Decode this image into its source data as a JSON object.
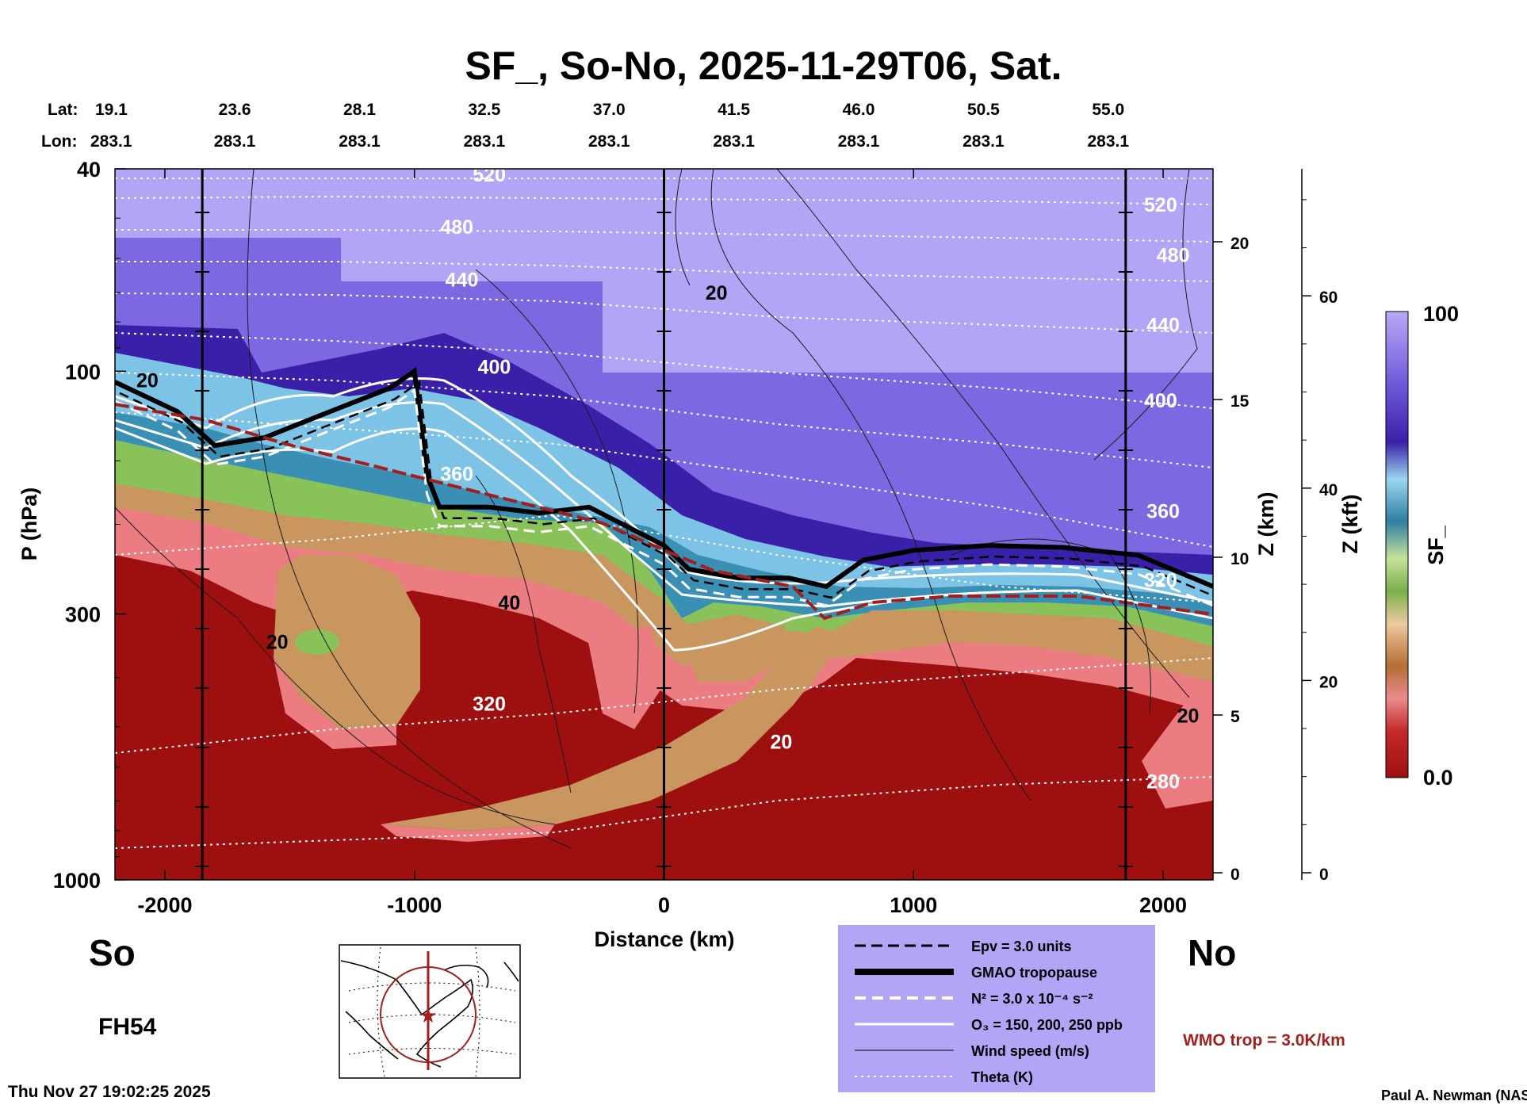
{
  "chart_data": {
    "type": "heatmap",
    "title": "SF_, So-No, 2025-11-29T06, Sat.",
    "xlabel": "Distance (km)",
    "ylabel": "P (hPa)",
    "zlabel_km": "Z (km)",
    "zlabel_kft": "Z (kft)",
    "colorbar_label": "SF_",
    "colorbar_range": [
      0.0,
      100
    ],
    "colorbar_ticks": [
      "100",
      "0.0"
    ],
    "x_range": [
      -2200,
      2200
    ],
    "x_ticks": [
      -2000,
      -1000,
      0,
      1000,
      2000
    ],
    "p_range": [
      40,
      1000
    ],
    "p_scale": "log",
    "p_ticks": [
      40,
      100,
      300,
      1000
    ],
    "z_km_ticks": [
      0,
      5,
      10,
      15,
      20
    ],
    "z_kft_ticks": [
      0,
      20,
      40,
      60
    ],
    "vertical_lines_x": [
      -1850,
      0,
      1850
    ],
    "lat_label": "Lat:",
    "lon_label": "Lon:",
    "lat_values": [
      "19.1",
      "23.6",
      "28.1",
      "32.5",
      "37.0",
      "41.5",
      "46.0",
      "50.5",
      "55.0"
    ],
    "lon_values": [
      "283.1",
      "283.1",
      "283.1",
      "283.1",
      "283.1",
      "283.1",
      "283.1",
      "283.1",
      "283.1"
    ],
    "latlon_x": [
      -2220,
      -1720,
      -1220,
      -720,
      -220,
      280,
      780,
      1280,
      1780
    ],
    "theta_labels": [
      {
        "text": "520",
        "x": -700,
        "p": 41
      },
      {
        "text": "480",
        "x": -830,
        "p": 52
      },
      {
        "text": "440",
        "x": -810,
        "p": 66
      },
      {
        "text": "400",
        "x": -680,
        "p": 98
      },
      {
        "text": "360",
        "x": -830,
        "p": 159
      },
      {
        "text": "320",
        "x": -700,
        "p": 450
      },
      {
        "text": "520",
        "x": 1990,
        "p": 47
      },
      {
        "text": "480",
        "x": 2040,
        "p": 59
      },
      {
        "text": "440",
        "x": 2000,
        "p": 81
      },
      {
        "text": "400",
        "x": 1990,
        "p": 114
      },
      {
        "text": "360",
        "x": 2000,
        "p": 188
      },
      {
        "text": "320",
        "x": 1990,
        "p": 257
      },
      {
        "text": "280",
        "x": 2000,
        "p": 640
      }
    ],
    "wind_labels": [
      {
        "text": "20",
        "x": 210,
        "p": 70
      },
      {
        "text": "40",
        "x": -620,
        "p": 285
      },
      {
        "text": "20",
        "x": -1550,
        "p": 340
      },
      {
        "text": "20",
        "x": 470,
        "p": 535
      },
      {
        "text": "20",
        "x": 2100,
        "p": 475
      },
      {
        "text": "20",
        "x": -2070,
        "p": 104
      }
    ],
    "legend": [
      {
        "style": "dashed-black",
        "label": "Epv = 3.0 units"
      },
      {
        "style": "thick-black",
        "label": "GMAO tropopause"
      },
      {
        "style": "dashed-white",
        "label": "N² = 3.0 x 10⁻⁴ s⁻²"
      },
      {
        "style": "solid-white",
        "label": "O₃ = 150, 200, 250 ppb"
      },
      {
        "style": "thin-black",
        "label": "Wind speed (m/s)"
      },
      {
        "style": "dotted-white",
        "label": "Theta (K)"
      }
    ],
    "wmo_label": "WMO trop = 3.0K/km",
    "south_label": "So",
    "north_label": "No",
    "forecast_hour": "FH54",
    "timestamp": "Thu Nov 27 19:02:25 2025",
    "credit": "Paul A. Newman (NASA",
    "tropopause_x": [
      -2200,
      -1950,
      -1800,
      -1600,
      -1300,
      -1100,
      -1000,
      -950,
      -900,
      -700,
      -500,
      -300,
      0,
      100,
      200,
      300,
      500,
      650,
      800,
      1000,
      1300,
      1600,
      1900,
      2200
    ],
    "tropopause_p": [
      105,
      120,
      140,
      135,
      118,
      108,
      100,
      160,
      185,
      185,
      190,
      185,
      220,
      245,
      250,
      255,
      255,
      265,
      235,
      225,
      220,
      222,
      230,
      265
    ]
  },
  "colors": {
    "strat_top": "#b3a4f6",
    "strat_mid": "#7d68e2",
    "strat_dark": "#3a20a8",
    "tropopause_blue": "#7dc3e6",
    "teal": "#3a8fb4",
    "green": "#8ac25a",
    "tan": "#c99660",
    "pink": "#ea7c82",
    "trop_red": "#9e1010",
    "wmo_red": "#a41e1e",
    "legend_bg": "#b3a4f6"
  }
}
